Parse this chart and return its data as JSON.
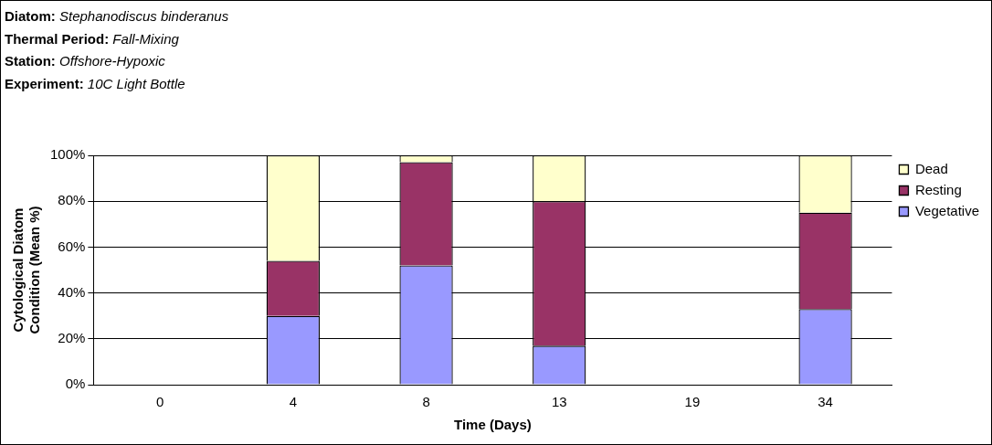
{
  "chart_data": {
    "type": "bar",
    "title": "Diatom: Stephanodiscus binderanus",
    "annotations": [
      "Thermal Period: Fall-Mixing",
      "Station: Offshore-Hypoxic",
      "Experiment: 10C Light Bottle"
    ],
    "xlabel": "Time (Days)",
    "ylabel": "Cytological Diatom Condition (Mean %)",
    "categories": [
      "0",
      "4",
      "8",
      "13",
      "19",
      "34"
    ],
    "stacked": true,
    "series": [
      {
        "name": "Vegetative",
        "color": "#9999ff",
        "values": [
          null,
          30,
          52,
          17,
          null,
          33
        ]
      },
      {
        "name": "Resting",
        "color": "#993366",
        "values": [
          null,
          24,
          45,
          63,
          null,
          42
        ]
      },
      {
        "name": "Dead",
        "color": "#ffffcc",
        "values": [
          null,
          46,
          3,
          20,
          null,
          25
        ]
      }
    ],
    "ylim": [
      0,
      100
    ],
    "yticks": [
      {
        "value": 0,
        "label": "0%"
      },
      {
        "value": 20,
        "label": "20%"
      },
      {
        "value": 40,
        "label": "40%"
      },
      {
        "value": 60,
        "label": "60%"
      },
      {
        "value": 80,
        "label": "80%"
      },
      {
        "value": 100,
        "label": "100%"
      }
    ],
    "grid": "y",
    "legend": "top right"
  }
}
